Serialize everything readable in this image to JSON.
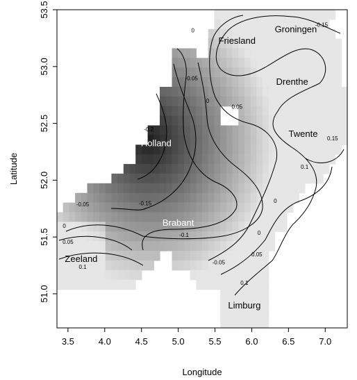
{
  "chart_data": {
    "type": "heatmap",
    "title": "",
    "xlabel": "Longitude",
    "ylabel": "Latitude",
    "xlim": [
      3.35,
      7.3
    ],
    "ylim": [
      50.7,
      53.5
    ],
    "xticks": [
      3.5,
      4.0,
      4.5,
      5.0,
      5.5,
      6.0,
      6.5,
      7.0
    ],
    "yticks": [
      51.0,
      51.5,
      52.0,
      52.5,
      53.0,
      53.5
    ],
    "xtick_labels": [
      "3.5",
      "4.0",
      "4.5",
      "5.0",
      "5.5",
      "6.0",
      "6.5",
      "7.0"
    ],
    "ytick_labels": [
      "51.0",
      "51.5",
      "52.0",
      "52.5",
      "53.0",
      "53.5"
    ],
    "color_scale": {
      "low": "#1e1e1e",
      "high": "#e6e6e6",
      "range": [
        -0.25,
        0.2
      ]
    },
    "regions": [
      {
        "name": "Groningen",
        "lon": 6.6,
        "lat": 53.3
      },
      {
        "name": "Friesland",
        "lon": 5.8,
        "lat": 53.2
      },
      {
        "name": "Drenthe",
        "lon": 6.55,
        "lat": 52.84
      },
      {
        "name": "Twente",
        "lon": 6.7,
        "lat": 52.38
      },
      {
        "name": "Holland",
        "lon": 4.7,
        "lat": 52.3
      },
      {
        "name": "Brabant",
        "lon": 5.0,
        "lat": 51.6
      },
      {
        "name": "Zeeland",
        "lon": 3.68,
        "lat": 51.28
      },
      {
        "name": "Limburg",
        "lon": 5.9,
        "lat": 50.87
      }
    ],
    "contour_labels": [
      {
        "text": "-0.15",
        "lon": 6.95,
        "lat": 53.35
      },
      {
        "text": "0",
        "lon": 5.2,
        "lat": 53.3
      },
      {
        "text": "-0.05",
        "lon": 5.18,
        "lat": 52.88
      },
      {
        "text": "0",
        "lon": 5.4,
        "lat": 52.68
      },
      {
        "text": "0.05",
        "lon": 5.8,
        "lat": 52.63
      },
      {
        "text": "-0.2",
        "lon": 4.6,
        "lat": 52.43
      },
      {
        "text": "0.15",
        "lon": 7.1,
        "lat": 52.35
      },
      {
        "text": "0.1",
        "lon": 6.72,
        "lat": 52.1
      },
      {
        "text": "0",
        "lon": 6.32,
        "lat": 51.8
      },
      {
        "text": "-0.15",
        "lon": 4.55,
        "lat": 51.78
      },
      {
        "text": "-0.05",
        "lon": 3.7,
        "lat": 51.77
      },
      {
        "text": "0",
        "lon": 3.45,
        "lat": 51.58
      },
      {
        "text": "-0.1",
        "lon": 5.08,
        "lat": 51.5
      },
      {
        "text": "0",
        "lon": 6.1,
        "lat": 51.52
      },
      {
        "text": "0.05",
        "lon": 3.5,
        "lat": 51.44
      },
      {
        "text": "0.05",
        "lon": 6.07,
        "lat": 51.33
      },
      {
        "text": "-0.05",
        "lon": 5.55,
        "lat": 51.26
      },
      {
        "text": "0.1",
        "lon": 5.9,
        "lat": 51.08
      },
      {
        "text": "0.1",
        "lon": 3.7,
        "lat": 51.22
      }
    ]
  }
}
